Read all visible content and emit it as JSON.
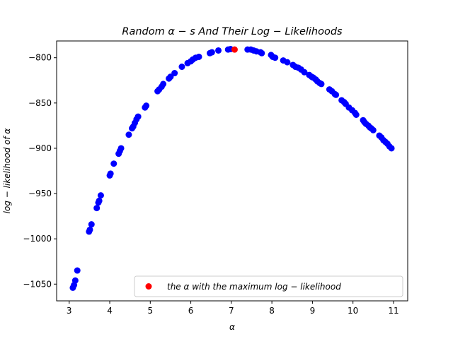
{
  "chart_data": {
    "type": "scatter",
    "title": "Random   α − s   And   Their   Log − Likelihoods",
    "xlabel": "α",
    "ylabel": "log − likelihood   of   α",
    "xlim": [
      2.69,
      11.35
    ],
    "ylim": [
      -1068.5,
      -781.5
    ],
    "xticks": [
      "3",
      "4",
      "5",
      "6",
      "7",
      "8",
      "9",
      "10",
      "11"
    ],
    "xtick_values": [
      3,
      4,
      5,
      6,
      7,
      8,
      9,
      10,
      11
    ],
    "yticks": [
      "−800",
      "−850",
      "−900",
      "−950",
      "−1000",
      "−1050"
    ],
    "ytick_values": [
      -800,
      -850,
      -900,
      -950,
      -1000,
      -1050
    ],
    "grid": false,
    "legend_position": "lower-right",
    "series": [
      {
        "color": "#0000ff",
        "points": [
          [
            3.09,
            -1054
          ],
          [
            3.12,
            -1051
          ],
          [
            3.15,
            -1046
          ],
          [
            3.2,
            -1035
          ],
          [
            3.49,
            -992
          ],
          [
            3.51,
            -990
          ],
          [
            3.55,
            -984
          ],
          [
            3.68,
            -966
          ],
          [
            3.72,
            -960
          ],
          [
            3.74,
            -958
          ],
          [
            3.78,
            -952
          ],
          [
            4.0,
            -930
          ],
          [
            4.02,
            -928
          ],
          [
            4.1,
            -917
          ],
          [
            4.22,
            -906
          ],
          [
            4.25,
            -903
          ],
          [
            4.28,
            -900
          ],
          [
            4.47,
            -885
          ],
          [
            4.55,
            -878
          ],
          [
            4.58,
            -876
          ],
          [
            4.62,
            -872
          ],
          [
            4.66,
            -868
          ],
          [
            4.7,
            -865
          ],
          [
            4.87,
            -855
          ],
          [
            4.9,
            -853
          ],
          [
            5.18,
            -837
          ],
          [
            5.22,
            -835
          ],
          [
            5.28,
            -832
          ],
          [
            5.32,
            -829
          ],
          [
            5.46,
            -823
          ],
          [
            5.5,
            -821
          ],
          [
            5.6,
            -817
          ],
          [
            5.78,
            -810
          ],
          [
            5.92,
            -806
          ],
          [
            6.0,
            -804
          ],
          [
            6.05,
            -802
          ],
          [
            6.12,
            -800
          ],
          [
            6.2,
            -799
          ],
          [
            6.47,
            -795
          ],
          [
            6.52,
            -794
          ],
          [
            6.68,
            -792
          ],
          [
            6.92,
            -791
          ],
          [
            6.98,
            -790.5
          ],
          [
            7.4,
            -791
          ],
          [
            7.48,
            -791
          ],
          [
            7.55,
            -792
          ],
          [
            7.62,
            -793
          ],
          [
            7.72,
            -794
          ],
          [
            7.75,
            -795
          ],
          [
            7.98,
            -797
          ],
          [
            8.02,
            -799
          ],
          [
            8.08,
            -800
          ],
          [
            8.28,
            -803
          ],
          [
            8.38,
            -805
          ],
          [
            8.52,
            -808
          ],
          [
            8.58,
            -810
          ],
          [
            8.65,
            -811
          ],
          [
            8.72,
            -813
          ],
          [
            8.8,
            -816
          ],
          [
            8.92,
            -819
          ],
          [
            8.98,
            -821
          ],
          [
            9.02,
            -822
          ],
          [
            9.08,
            -824
          ],
          [
            9.12,
            -826
          ],
          [
            9.18,
            -828
          ],
          [
            9.22,
            -829
          ],
          [
            9.42,
            -835
          ],
          [
            9.48,
            -837
          ],
          [
            9.55,
            -840
          ],
          [
            9.58,
            -841
          ],
          [
            9.72,
            -847
          ],
          [
            9.78,
            -849
          ],
          [
            9.82,
            -851
          ],
          [
            9.9,
            -855
          ],
          [
            9.98,
            -858
          ],
          [
            10.05,
            -861
          ],
          [
            10.08,
            -863
          ],
          [
            10.25,
            -869
          ],
          [
            10.28,
            -871
          ],
          [
            10.32,
            -873
          ],
          [
            10.38,
            -875
          ],
          [
            10.42,
            -877
          ],
          [
            10.45,
            -878
          ],
          [
            10.5,
            -880
          ],
          [
            10.65,
            -886
          ],
          [
            10.7,
            -888
          ],
          [
            10.75,
            -891
          ],
          [
            10.8,
            -893
          ],
          [
            10.85,
            -895
          ],
          [
            10.9,
            -898
          ],
          [
            10.95,
            -900
          ]
        ]
      },
      {
        "name": "the   α   with   the   maximum   log − likelihood",
        "color": "#ff0000",
        "points": [
          [
            7.08,
            -791
          ]
        ]
      }
    ]
  }
}
